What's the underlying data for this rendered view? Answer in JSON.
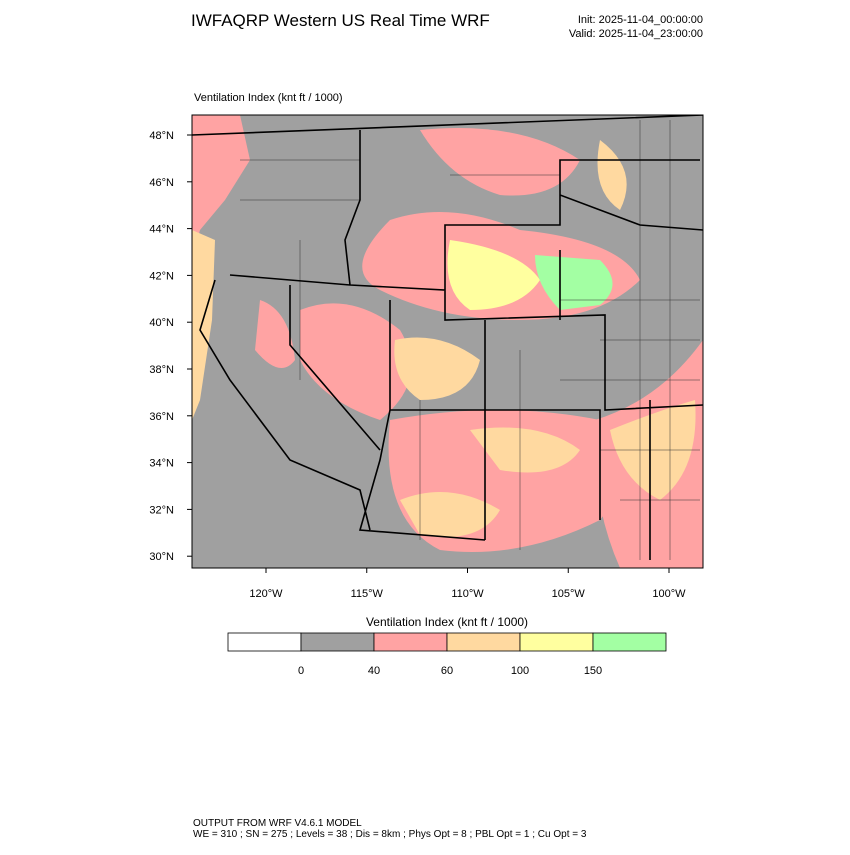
{
  "header": {
    "title": "IWFAQRP Western US Real Time WRF",
    "init": "Init: 2025-11-04_00:00:00",
    "valid": "Valid: 2025-11-04_23:00:00"
  },
  "map": {
    "label": "Ventilation Index   (knt ft / 1000)",
    "lat_labels": [
      "48°N",
      "46°N",
      "44°N",
      "42°N",
      "40°N",
      "38°N",
      "36°N",
      "34°N",
      "32°N",
      "30°N"
    ],
    "lon_labels": [
      "120°W",
      "115°W",
      "110°W",
      "105°W",
      "100°W"
    ]
  },
  "colorbar": {
    "title": "Ventilation Index  (knt ft / 1000)",
    "colors": [
      "#ffffff",
      "#a0a0a0",
      "#ffa3a3",
      "#ffd9a0",
      "#ffff9f",
      "#a3ffa3"
    ],
    "labels": [
      "0",
      "40",
      "60",
      "100",
      "150"
    ]
  },
  "footer": {
    "line1": "OUTPUT FROM WRF V4.6.1 MODEL",
    "line2": "WE = 310 ; SN = 275 ; Levels = 38 ; Dis = 8km ; Phys Opt = 8 ; PBL Opt = 1 ; Cu Opt = 3"
  }
}
